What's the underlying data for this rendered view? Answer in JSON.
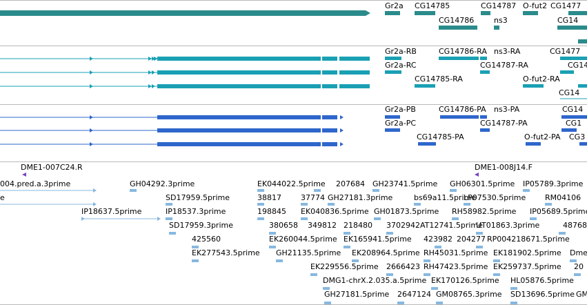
{
  "colors": {
    "gene": "#2b8b8b",
    "transcript": "#1aa0b4",
    "protein": "#2e66cc",
    "clone_marker": "#7a44c0",
    "est": "#86b8e0",
    "separator": "#b8b8b8"
  },
  "gene_track": {
    "labels": [
      "Gr2a",
      "CG14785",
      "CG14787",
      "O-fut2",
      "CG1477",
      "CG14786",
      "ns3",
      "CG14"
    ]
  },
  "transcript_track": {
    "labels": [
      "Gr2a-RB",
      "CG14786-RA",
      "ns3-RA",
      "CG1477",
      "Gr2a-RC",
      "CG14787-RA",
      "CG14",
      "CG14785-RA",
      "O-fut2-RA",
      "CG14"
    ]
  },
  "protein_track": {
    "labels": [
      "Gr2a-PB",
      "CG14786-PA",
      "ns3-PA",
      "CG14",
      "Gr2a-PC",
      "CG14787-PA",
      "CG1",
      "CG14785-PA",
      "O-fut2-PA",
      "CG3"
    ]
  },
  "clone_track": {
    "labels": [
      "DME1-007C24.R",
      "DME1-008J14.F"
    ]
  },
  "est_track": {
    "labels": [
      "004.pred.a.3prime",
      "GH04292.3prime",
      "EK044022.5prime",
      "207684",
      "GH23741.5prime",
      "GH06301.5prime",
      "IP05789.3prime",
      "e",
      "SD17959.5prime",
      "38817",
      "37774",
      "GH27181.3prime",
      "bs69a11.5prime",
      "LP07530.5prime",
      "RM04106",
      "IP18637.5prime",
      "IP18537.3prime",
      "198845",
      "EK040836.5prime",
      "GH01873.5prime",
      "RH58982.5prime",
      "IP05689.5prime",
      "SD17959.3prime",
      "380658",
      "349812",
      "218480",
      "3702942AT12741.5prime",
      "UT01863.3prime",
      "48768",
      "425560",
      "EK260044.5prime",
      "EK165941.5prime",
      "423982",
      "204277",
      "RP004218671.5prime",
      "EK277543.5prime",
      "GH21135.5prime",
      "EK208964.5prime",
      "RH45031.5prime",
      "EK181902.5prime",
      "Dme",
      "EK229556.5prime",
      "2666423",
      "RH47423.5prime",
      "EK259737.5prime",
      "20",
      "DMG1-chrX.2.035.a.5prime",
      "EK170126.5prime",
      "HL05876.5prime",
      "GH27181.5prime",
      "2647124",
      "GM08765.3prime",
      "SD13696.5prime",
      "GM"
    ]
  }
}
